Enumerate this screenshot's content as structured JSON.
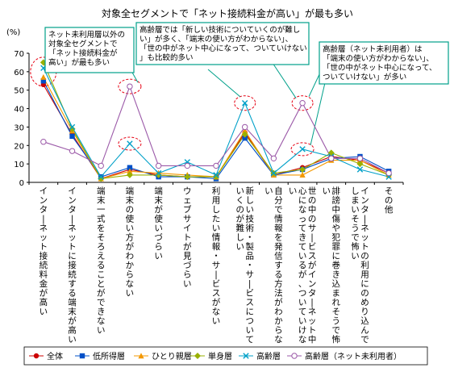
{
  "chart_data": {
    "type": "line",
    "title": "対象全セグメントで「ネット接続料金が高い」が最も多い",
    "ylabel": "(%)",
    "ylim": [
      0,
      70
    ],
    "yticks": [
      0,
      10,
      20,
      30,
      40,
      50,
      60,
      70
    ],
    "grid": false,
    "legend_position": "bottom",
    "categories": [
      "インターネット接続料金が高い",
      "インターネットに接続する端末が高い",
      "端末一式をそろえることができない",
      "端末の使い方がわからない",
      "端末が使いづらい",
      "ウェブサイトが見づらい",
      "利用したい情報・サービスがない",
      "新しい技術・製品・サービスについていくのが難しい",
      "自分で情報を発信する方法がわからない",
      "世の中のサービスがインターネット中心になってきているが、ついていけない",
      "誹謗中傷や犯罪に巻き込まれそうで怖い",
      "インターネットの利用にのめり込んでしまいそうで怖い",
      "その他"
    ],
    "series": [
      {
        "name": "全体",
        "color": "#cc0000",
        "marker": "circle",
        "values": [
          53,
          26,
          2,
          7,
          4,
          3,
          3,
          27,
          4,
          8,
          14,
          12,
          5
        ]
      },
      {
        "name": "低所得層",
        "color": "#0050c8",
        "marker": "square",
        "values": [
          55,
          25,
          3,
          8,
          3,
          3,
          2,
          24,
          4,
          7,
          13,
          14,
          6
        ]
      },
      {
        "name": "ひとり親層",
        "color": "#f39800",
        "marker": "triangle",
        "values": [
          57,
          28,
          2,
          6,
          5,
          4,
          3,
          28,
          4,
          4,
          12,
          12,
          4
        ]
      },
      {
        "name": "単身層",
        "color": "#99b000",
        "marker": "diamond",
        "values": [
          65,
          29,
          2,
          4,
          4,
          3,
          3,
          26,
          5,
          7,
          16,
          10,
          4
        ]
      },
      {
        "name": "高齢層",
        "color": "#00a0c8",
        "marker": "x",
        "values": [
          62,
          30,
          3,
          21,
          5,
          11,
          4,
          43,
          5,
          18,
          14,
          7,
          3
        ]
      },
      {
        "name": "高齢層（ネット未利用者）",
        "color": "#9b59a8",
        "marker": "open-circle",
        "values": [
          22,
          17,
          9,
          52,
          9,
          9,
          9,
          30,
          13,
          43,
          13,
          13,
          5
        ]
      }
    ]
  },
  "callouts": {
    "left": [
      "ネット未利用層以外の",
      "対象全セグメントで",
      "「ネット接続料金が",
      "高い」が最も多い"
    ],
    "center": [
      "高齢層では「新しい技術についていくのが難し",
      "い」が多く、「端末の使い方がわからない」、",
      "「世の中がネット中心になって、ついていけない",
      "」も比較的多い"
    ],
    "right": [
      "高齢層（ネット未利用者）は",
      "「端末の使い方がわからない」、",
      "「世の中がネット中心になって、",
      "ついていけない」が多い"
    ]
  }
}
